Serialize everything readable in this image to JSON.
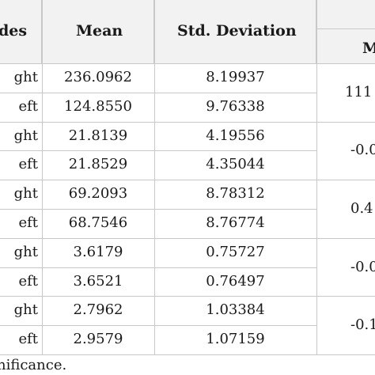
{
  "table": {
    "headers": {
      "sides": "des",
      "mean": "Mean",
      "std": "Std. Deviation",
      "m_sub": "M"
    },
    "rows": [
      {
        "side": "ght",
        "mean": "236.0962",
        "std": "8.19937"
      },
      {
        "side": "eft",
        "mean": "124.8550",
        "std": "9.76338"
      },
      {
        "side": "ght",
        "mean": "21.8139",
        "std": "4.19556"
      },
      {
        "side": "eft",
        "mean": "21.8529",
        "std": "4.35044"
      },
      {
        "side": "ght",
        "mean": "69.2093",
        "std": "8.78312"
      },
      {
        "side": "eft",
        "mean": "68.7546",
        "std": "8.76774"
      },
      {
        "side": "ght",
        "mean": "3.6179",
        "std": "0.75727"
      },
      {
        "side": "eft",
        "mean": "3.6521",
        "std": "0.76497"
      },
      {
        "side": "ght",
        "mean": "2.7962",
        "std": "1.03384"
      },
      {
        "side": "eft",
        "mean": "2.9579",
        "std": "1.07159"
      }
    ],
    "merged": [
      "111",
      "-0.0",
      "0.4",
      "-0.0",
      "-0.1"
    ]
  },
  "footnote": "nificance."
}
